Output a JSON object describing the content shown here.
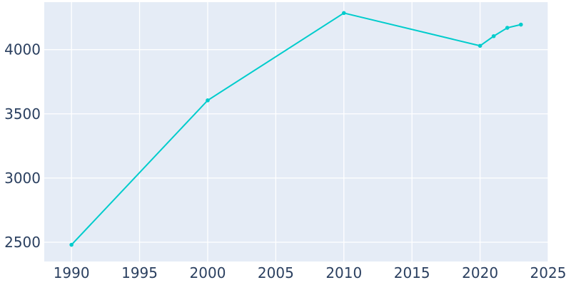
{
  "chart_data": {
    "type": "line",
    "title": "",
    "xlabel": "",
    "ylabel": "",
    "xlim": [
      1988,
      2025
    ],
    "ylim": [
      2350,
      4370
    ],
    "x_ticks": [
      1990,
      1995,
      2000,
      2005,
      2010,
      2015,
      2020,
      2025
    ],
    "y_ticks": [
      2500,
      3000,
      3500,
      4000
    ],
    "grid": true,
    "legend": "none",
    "colors": {
      "line": "#00cccc",
      "plot_bg": "#e5ecf6",
      "grid": "#ffffff",
      "text": "#2a3f5f"
    },
    "series": [
      {
        "x": [
          1990,
          2000,
          2010,
          2020,
          2021,
          2022,
          2023
        ],
        "y": [
          2480,
          3605,
          4285,
          4030,
          4105,
          4170,
          4195
        ]
      }
    ]
  }
}
